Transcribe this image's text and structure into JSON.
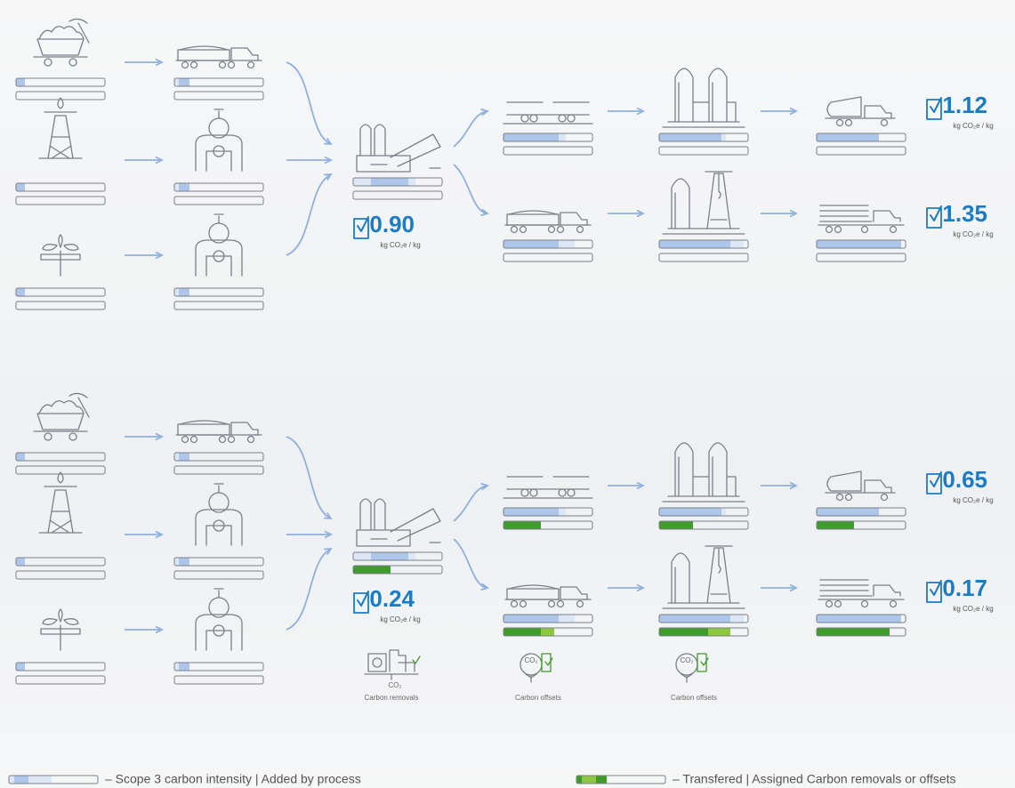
{
  "sections": [
    {
      "result": {
        "value": "0.90",
        "unit": "kg CO₂e / kg"
      },
      "outputs": [
        {
          "value": "1.12",
          "unit": "kg CO₂e / kg"
        },
        {
          "value": "1.35",
          "unit": "kg CO₂e / kg"
        }
      ]
    },
    {
      "result": {
        "value": "0.24",
        "unit": "kg CO₂e / kg"
      },
      "outputs": [
        {
          "value": "0.65",
          "unit": "kg CO₂e / kg"
        },
        {
          "value": "0.17",
          "unit": "kg CO₂e / kg"
        }
      ],
      "annotations": [
        {
          "symbol": "CO₂",
          "label": "Carbon removals"
        },
        {
          "symbol": "CO₂",
          "label": "Carbon offsets"
        },
        {
          "symbol": "CO₂",
          "label": "Carbon offsets"
        }
      ]
    }
  ],
  "legend": [
    {
      "label": "– Scope 3 carbon intensity | Added by process"
    },
    {
      "label": "– Transfered | Assigned Carbon removals or offsets"
    }
  ]
}
